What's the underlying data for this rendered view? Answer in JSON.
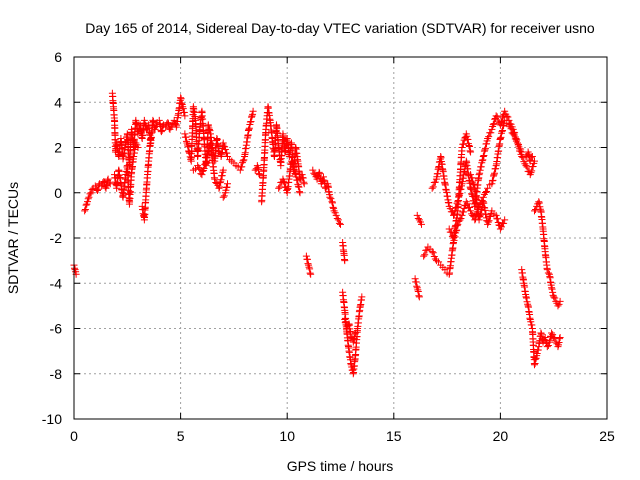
{
  "chart_data": {
    "type": "scatter",
    "title": "Day 165 of 2014, Sidereal Day-to-day VTEC variation (SDTVAR) for receiver usno",
    "xlabel": "GPS time / hours",
    "ylabel": "SDTVAR / TECUs",
    "xlim": [
      0,
      25
    ],
    "ylim": [
      -10,
      6
    ],
    "xticks": [
      0,
      5,
      10,
      15,
      20,
      25
    ],
    "yticks": [
      -10,
      -8,
      -6,
      -4,
      -2,
      0,
      2,
      4,
      6
    ],
    "xtick_labels": [
      "0",
      "5",
      "10",
      "15",
      "20",
      "25"
    ],
    "ytick_labels": [
      "-10",
      "-8",
      "-6",
      "-4",
      "-2",
      "0",
      "2",
      "4",
      "6"
    ],
    "grid": true,
    "marker": "+",
    "color": "#ff0000",
    "series": [
      {
        "name": "SDTVAR",
        "segments": [
          {
            "x": [
              0.0,
              0.05,
              0.1
            ],
            "y": [
              -3.2,
              -3.4,
              -3.6
            ]
          },
          {
            "x": [
              0.5,
              0.6,
              0.7,
              0.8,
              0.9,
              1.0,
              1.1,
              1.2,
              1.3,
              1.4,
              1.5,
              1.6,
              1.7
            ],
            "y": [
              -0.8,
              -0.5,
              -0.2,
              0.0,
              0.2,
              0.3,
              0.1,
              0.4,
              0.3,
              0.5,
              0.2,
              0.6,
              0.4
            ]
          },
          {
            "x": [
              1.8,
              1.85,
              1.9,
              1.95,
              2.0,
              2.1,
              2.2,
              2.3,
              2.4,
              2.5,
              2.6,
              2.7,
              2.8,
              2.9,
              3.0,
              3.1,
              3.2,
              3.3,
              3.4,
              3.5,
              3.6,
              3.7,
              3.8,
              3.9,
              4.0,
              4.1,
              4.2,
              4.3,
              4.4,
              4.5,
              4.6,
              4.7,
              4.8,
              4.9,
              5.0,
              5.1,
              5.2
            ],
            "y": [
              4.4,
              3.8,
              3.2,
              1.8,
              2.2,
              1.6,
              2.4,
              1.5,
              2.0,
              2.6,
              1.2,
              2.8,
              2.0,
              3.2,
              2.6,
              3.0,
              2.4,
              3.2,
              2.8,
              3.0,
              2.2,
              3.2,
              2.8,
              3.1,
              3.2,
              2.7,
              3.0,
              2.9,
              3.1,
              2.8,
              3.0,
              3.2,
              2.9,
              3.5,
              4.2,
              3.8,
              3.4
            ]
          },
          {
            "x": [
              1.9,
              2.0,
              2.1,
              2.2,
              2.3,
              2.4,
              2.5,
              2.6,
              2.7,
              2.8,
              2.9,
              3.0
            ],
            "y": [
              0.8,
              0.2,
              1.0,
              0.4,
              -0.2,
              0.6,
              1.2,
              -0.5,
              0.9,
              1.6,
              2.2,
              2.0
            ]
          },
          {
            "x": [
              3.2,
              3.3,
              3.4,
              3.5,
              3.6
            ],
            "y": [
              -0.6,
              -1.2,
              0.2,
              1.4,
              2.4
            ]
          },
          {
            "x": [
              5.2,
              5.3,
              5.4,
              5.5,
              5.6,
              5.7,
              5.8,
              5.9,
              6.0,
              6.1,
              6.2,
              6.3,
              6.4,
              6.5,
              6.6,
              6.7,
              6.8,
              6.9,
              7.0,
              7.2,
              7.4,
              7.6,
              7.8,
              8.0,
              8.2,
              8.4
            ],
            "y": [
              2.6,
              2.2,
              1.8,
              1.4,
              3.8,
              3.2,
              1.6,
              2.8,
              3.6,
              2.4,
              1.2,
              3.0,
              2.6,
              2.0,
              1.4,
              2.4,
              1.8,
              1.6,
              2.2,
              1.6,
              1.4,
              1.2,
              1.0,
              1.6,
              2.8,
              3.6
            ]
          },
          {
            "x": [
              5.6,
              5.8,
              6.0,
              6.2,
              6.4,
              6.6,
              6.8,
              7.0
            ],
            "y": [
              1.0,
              1.2,
              0.8,
              1.4,
              2.2,
              0.6,
              0.2,
              1.0
            ]
          },
          {
            "x": [
              7.0,
              7.1,
              7.2
            ],
            "y": [
              -0.2,
              0.0,
              0.4
            ]
          },
          {
            "x": [
              8.5,
              8.6,
              8.7
            ],
            "y": [
              1.0,
              1.2,
              0.8
            ]
          },
          {
            "x": [
              8.8,
              8.9,
              9.0,
              9.1,
              9.2,
              9.3,
              9.4,
              9.5,
              9.6,
              9.7,
              9.8,
              9.9,
              10.0,
              10.1,
              10.2,
              10.3,
              10.4,
              10.5,
              10.6,
              10.7,
              10.8
            ],
            "y": [
              -0.4,
              1.0,
              2.8,
              3.8,
              3.2,
              2.4,
              1.6,
              3.0,
              2.0,
              1.2,
              2.6,
              1.8,
              2.4,
              1.6,
              2.2,
              1.0,
              2.0,
              1.4,
              0.6,
              0.8,
              0.4
            ]
          },
          {
            "x": [
              9.6,
              9.8,
              10.0,
              10.2,
              10.4,
              10.6
            ],
            "y": [
              0.2,
              0.6,
              0.0,
              1.4,
              0.8,
              0.0
            ]
          },
          {
            "x": [
              10.9,
              11.0,
              11.1
            ],
            "y": [
              -2.8,
              -3.2,
              -3.6
            ]
          },
          {
            "x": [
              11.2,
              11.3,
              11.4,
              11.5,
              11.6,
              11.7,
              11.8,
              11.9,
              12.0,
              12.1,
              12.2,
              12.3,
              12.4,
              12.5
            ],
            "y": [
              1.0,
              0.8,
              0.6,
              0.9,
              0.4,
              0.7,
              0.2,
              0.4,
              -0.2,
              -0.4,
              -0.8,
              -1.0,
              -1.2,
              -1.4
            ]
          },
          {
            "x": [
              12.6,
              12.65,
              12.7
            ],
            "y": [
              -2.2,
              -2.6,
              -3.0
            ]
          },
          {
            "x": [
              12.6,
              12.7,
              12.8,
              12.9,
              13.0,
              13.1,
              13.2,
              13.3,
              13.4,
              13.5
            ],
            "y": [
              -4.4,
              -5.2,
              -6.2,
              -7.0,
              -7.6,
              -8.0,
              -7.2,
              -6.0,
              -5.2,
              -4.6
            ]
          },
          {
            "x": [
              12.7,
              12.8,
              12.9,
              13.0,
              13.1,
              13.2
            ],
            "y": [
              -5.6,
              -6.0,
              -5.8,
              -6.4,
              -6.6,
              -6.2
            ]
          },
          {
            "x": [
              16.0,
              16.1,
              16.2
            ],
            "y": [
              -3.8,
              -4.2,
              -4.6
            ]
          },
          {
            "x": [
              16.1,
              16.2,
              16.3
            ],
            "y": [
              -1.0,
              -1.2,
              -1.4
            ]
          },
          {
            "x": [
              16.4,
              16.6,
              16.8,
              17.0,
              17.2,
              17.4,
              17.6,
              17.8,
              18.0,
              18.2,
              18.4,
              18.6,
              18.8,
              19.0,
              19.2,
              19.4,
              19.6,
              19.8,
              20.0,
              20.2,
              20.4,
              20.6,
              20.8,
              21.0
            ],
            "y": [
              -2.8,
              -2.4,
              -2.6,
              -3.0,
              -3.2,
              -3.4,
              -3.6,
              -2.2,
              -1.4,
              -1.0,
              -0.4,
              -0.8,
              -1.2,
              -0.6,
              -0.2,
              0.2,
              0.4,
              1.2,
              2.4,
              3.2,
              3.0,
              2.6,
              2.2,
              1.8
            ]
          },
          {
            "x": [
              16.8,
              17.0,
              17.2,
              17.4,
              17.6,
              17.8,
              18.0,
              18.2,
              18.4,
              18.6,
              18.8,
              19.0,
              19.2,
              19.4,
              19.6,
              19.8,
              20.0,
              20.2,
              20.4,
              20.6,
              20.8,
              21.0,
              21.2,
              21.4,
              21.6
            ],
            "y": [
              0.2,
              0.6,
              1.6,
              0.4,
              -0.6,
              -1.0,
              -0.4,
              0.4,
              1.4,
              0.2,
              -0.6,
              0.8,
              1.6,
              2.4,
              2.8,
              3.4,
              3.0,
              3.6,
              3.2,
              2.8,
              2.2,
              1.6,
              1.2,
              0.8,
              1.4
            ]
          },
          {
            "x": [
              17.6,
              17.8,
              18.0,
              18.2,
              18.4,
              18.6
            ],
            "y": [
              -1.6,
              -2.0,
              -0.8,
              2.0,
              2.6,
              1.8
            ]
          },
          {
            "x": [
              18.6,
              18.8,
              19.0,
              19.2,
              19.4,
              19.6,
              19.8,
              20.0,
              20.2
            ],
            "y": [
              0.8,
              0.2,
              -1.2,
              -0.4,
              -1.4,
              -0.8,
              -1.0,
              -1.6,
              -1.2
            ]
          },
          {
            "x": [
              21.0,
              21.1,
              21.2,
              21.3,
              21.4,
              21.5,
              21.6,
              21.7,
              21.8,
              21.9,
              22.0,
              22.1,
              22.2,
              22.3,
              22.4,
              22.5,
              22.6,
              22.7,
              22.8
            ],
            "y": [
              -3.4,
              -4.0,
              -4.6,
              -5.0,
              -5.6,
              -6.0,
              -7.6,
              -7.2,
              -6.8,
              -6.2,
              -6.6,
              -6.4,
              -6.8,
              -6.6,
              -6.2,
              -6.4,
              -6.6,
              -6.8,
              -6.4
            ]
          },
          {
            "x": [
              21.6,
              21.7,
              21.8,
              21.9,
              22.0,
              22.1,
              22.2,
              22.3,
              22.4,
              22.5,
              22.6,
              22.7,
              22.8
            ],
            "y": [
              -0.8,
              -0.6,
              -0.4,
              -0.8,
              -1.6,
              -2.6,
              -3.4,
              -3.6,
              -4.2,
              -4.6,
              -4.8,
              -5.0,
              -4.8
            ]
          },
          {
            "x": [
              21.2,
              21.3,
              21.4,
              21.5
            ],
            "y": [
              1.6,
              1.8,
              1.4,
              1.6
            ]
          }
        ]
      }
    ]
  }
}
